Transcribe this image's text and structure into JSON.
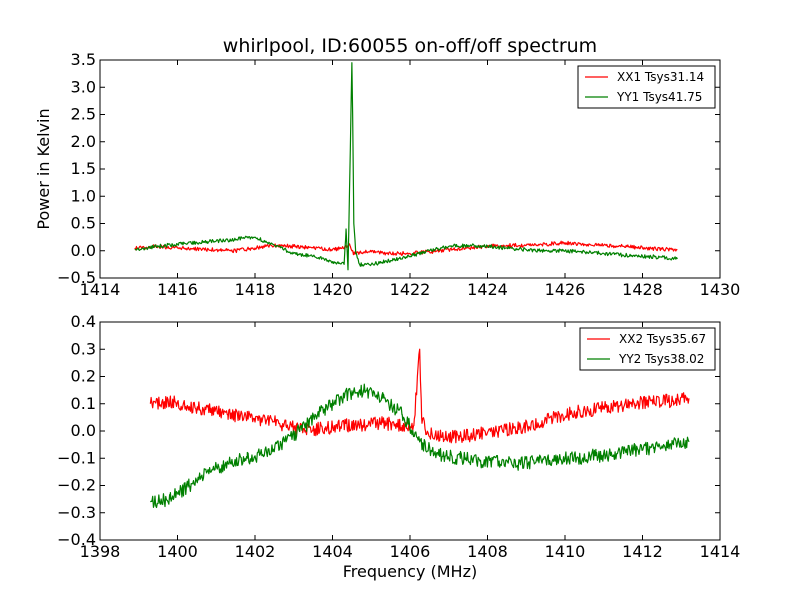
{
  "chart_data": [
    {
      "type": "line",
      "title": "whirlpool, ID:60055 on-off/off spectrum",
      "xlabel": "",
      "ylabel": "Power in Kelvin",
      "xlim": [
        1414,
        1430
      ],
      "ylim": [
        -0.5,
        3.5
      ],
      "xticks": [
        "1414",
        "1416",
        "1418",
        "1420",
        "1422",
        "1424",
        "1426",
        "1428",
        "1430"
      ],
      "yticks": [
        "−0.5",
        "0.0",
        "0.5",
        "1.0",
        "1.5",
        "2.0",
        "2.5",
        "3.0",
        "3.5"
      ],
      "grid": false,
      "legend_position": "top-right",
      "series": [
        {
          "name": "XX1 Tsys31.14",
          "color": "#ff0000",
          "x": [
            1414.9,
            1415.5,
            1416.0,
            1416.5,
            1417.0,
            1417.5,
            1418.0,
            1418.5,
            1419.0,
            1419.5,
            1420.0,
            1420.3,
            1420.45,
            1420.5,
            1420.55,
            1420.7,
            1421.0,
            1421.5,
            1422.0,
            1422.5,
            1423.0,
            1423.5,
            1424.0,
            1424.5,
            1425.0,
            1425.5,
            1426.0,
            1426.5,
            1427.0,
            1427.5,
            1428.0,
            1428.5,
            1428.9
          ],
          "y": [
            0.05,
            0.08,
            0.05,
            0.03,
            0.02,
            0.0,
            0.05,
            0.1,
            0.08,
            0.05,
            0.02,
            0.05,
            0.1,
            0.0,
            -0.05,
            -0.03,
            -0.02,
            -0.05,
            -0.05,
            -0.02,
            0.02,
            0.05,
            0.08,
            0.1,
            0.1,
            0.12,
            0.15,
            0.12,
            0.1,
            0.08,
            0.05,
            0.03,
            0.02
          ]
        },
        {
          "name": "YY1 Tsys41.75",
          "color": "#008000",
          "x": [
            1414.9,
            1415.5,
            1416.0,
            1416.5,
            1417.0,
            1417.5,
            1417.8,
            1418.0,
            1418.5,
            1419.0,
            1419.5,
            1420.0,
            1420.3,
            1420.35,
            1420.4,
            1420.45,
            1420.5,
            1420.52,
            1420.55,
            1420.6,
            1420.7,
            1421.0,
            1421.5,
            1422.0,
            1422.5,
            1423.0,
            1423.5,
            1424.0,
            1424.5,
            1425.0,
            1425.5,
            1426.0,
            1426.5,
            1427.0,
            1427.5,
            1428.0,
            1428.5,
            1428.9
          ],
          "y": [
            0.03,
            0.08,
            0.12,
            0.15,
            0.18,
            0.2,
            0.25,
            0.25,
            0.1,
            -0.05,
            -0.1,
            -0.2,
            -0.25,
            0.4,
            -0.35,
            1.5,
            3.45,
            2.5,
            0.5,
            -0.05,
            -0.25,
            -0.25,
            -0.18,
            -0.1,
            0.0,
            0.08,
            0.1,
            0.08,
            0.05,
            0.02,
            0.0,
            0.0,
            -0.02,
            -0.05,
            -0.08,
            -0.1,
            -0.12,
            -0.15
          ]
        }
      ]
    },
    {
      "type": "line",
      "title": "",
      "xlabel": "Frequency (MHz)",
      "ylabel": "",
      "xlim": [
        1398,
        1414
      ],
      "ylim": [
        -0.4,
        0.4
      ],
      "xticks": [
        "1398",
        "1400",
        "1402",
        "1404",
        "1406",
        "1408",
        "1410",
        "1412",
        "1414"
      ],
      "yticks": [
        "−0.4",
        "−0.3",
        "−0.2",
        "−0.1",
        "0.0",
        "0.1",
        "0.2",
        "0.3",
        "0.4"
      ],
      "grid": false,
      "legend_position": "top-right",
      "series": [
        {
          "name": "XX2 Tsys35.67",
          "color": "#ff0000",
          "x": [
            1399.3,
            1399.8,
            1400.3,
            1400.8,
            1401.3,
            1401.8,
            1402.3,
            1402.8,
            1403.3,
            1403.8,
            1404.3,
            1404.8,
            1405.3,
            1405.8,
            1406.1,
            1406.25,
            1406.3,
            1406.4,
            1406.8,
            1407.3,
            1407.8,
            1408.3,
            1408.8,
            1409.3,
            1409.8,
            1410.3,
            1410.8,
            1411.3,
            1411.8,
            1412.3,
            1412.8,
            1413.2
          ],
          "y": [
            0.1,
            0.11,
            0.09,
            0.08,
            0.06,
            0.05,
            0.04,
            0.02,
            0.0,
            0.01,
            0.02,
            0.02,
            0.03,
            0.02,
            0.02,
            0.3,
            0.05,
            0.0,
            -0.02,
            -0.02,
            -0.01,
            0.0,
            0.01,
            0.03,
            0.05,
            0.07,
            0.08,
            0.09,
            0.1,
            0.11,
            0.11,
            0.12
          ]
        },
        {
          "name": "YY2 Tsys38.02",
          "color": "#008000",
          "x": [
            1399.3,
            1399.8,
            1400.3,
            1400.8,
            1401.3,
            1401.8,
            1402.3,
            1402.8,
            1403.3,
            1403.8,
            1404.3,
            1404.8,
            1405.3,
            1405.8,
            1406.3,
            1406.8,
            1407.3,
            1407.8,
            1408.3,
            1408.8,
            1409.3,
            1409.8,
            1410.3,
            1410.8,
            1411.3,
            1411.8,
            1412.3,
            1412.8,
            1413.2
          ],
          "y": [
            -0.26,
            -0.25,
            -0.2,
            -0.15,
            -0.12,
            -0.1,
            -0.08,
            -0.04,
            0.02,
            0.08,
            0.13,
            0.15,
            0.12,
            0.06,
            -0.05,
            -0.09,
            -0.1,
            -0.11,
            -0.11,
            -0.12,
            -0.11,
            -0.1,
            -0.1,
            -0.09,
            -0.09,
            -0.07,
            -0.06,
            -0.05,
            -0.04
          ]
        }
      ]
    }
  ]
}
